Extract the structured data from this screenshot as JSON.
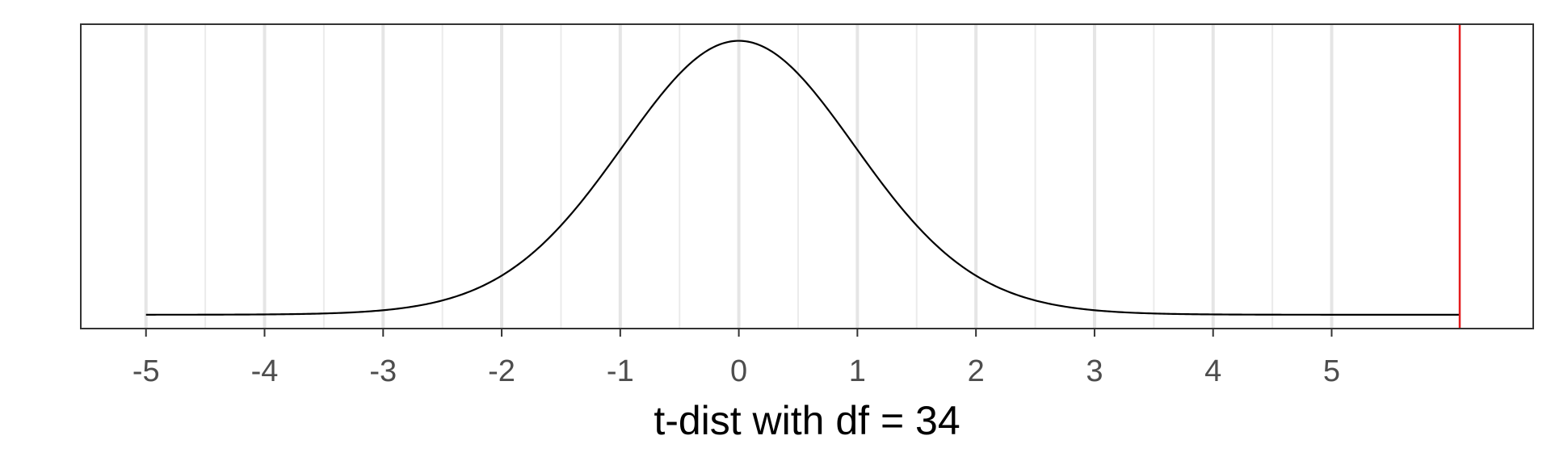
{
  "chart_data": {
    "type": "line",
    "title": "",
    "xlabel": "t-dist with df = 34",
    "ylabel": "",
    "df": 34,
    "xlim": [
      -5.55,
      6.7
    ],
    "ylim": [
      -0.02,
      0.42
    ],
    "x_ticks": [
      -5,
      -4,
      -3,
      -2,
      -1,
      0,
      1,
      2,
      3,
      4,
      5
    ],
    "x_tick_labels": [
      "-5",
      "-4",
      "-3",
      "-2",
      "-1",
      "0",
      "1",
      "2",
      "3",
      "4",
      "5"
    ],
    "x_minor_gridlines": [
      -4.5,
      -3.5,
      -2.5,
      -1.5,
      -0.5,
      0.5,
      1.5,
      2.5,
      3.5,
      4.5
    ],
    "grid": "vertical only",
    "curve_range": [
      -5,
      6.08
    ],
    "series": [
      {
        "x": [
          -5,
          -4.5,
          -4,
          -3.5,
          -3,
          -2.5,
          -2,
          -1.5,
          -1,
          -0.5,
          0,
          0.5,
          1,
          1.5,
          2,
          2.5,
          3,
          3.5,
          4,
          4.5,
          5,
          5.5,
          6.08
        ],
        "y": [
          3e-05,
          0.0001,
          0.0003,
          0.0012,
          0.0061,
          0.0189,
          0.0547,
          0.1301,
          0.2405,
          0.3488,
          0.3961,
          0.3488,
          0.2405,
          0.1301,
          0.0547,
          0.0189,
          0.0061,
          0.0012,
          0.0003,
          0.0001,
          3e-05,
          1e-05,
          0.0
        ]
      }
    ],
    "reference_line": {
      "x": 6.08,
      "color": "#e41a1c"
    },
    "colors": {
      "curve": "#000000",
      "grid_major": "#e5e5e5",
      "grid_minor": "#ebebeb",
      "border": "#333333"
    }
  }
}
